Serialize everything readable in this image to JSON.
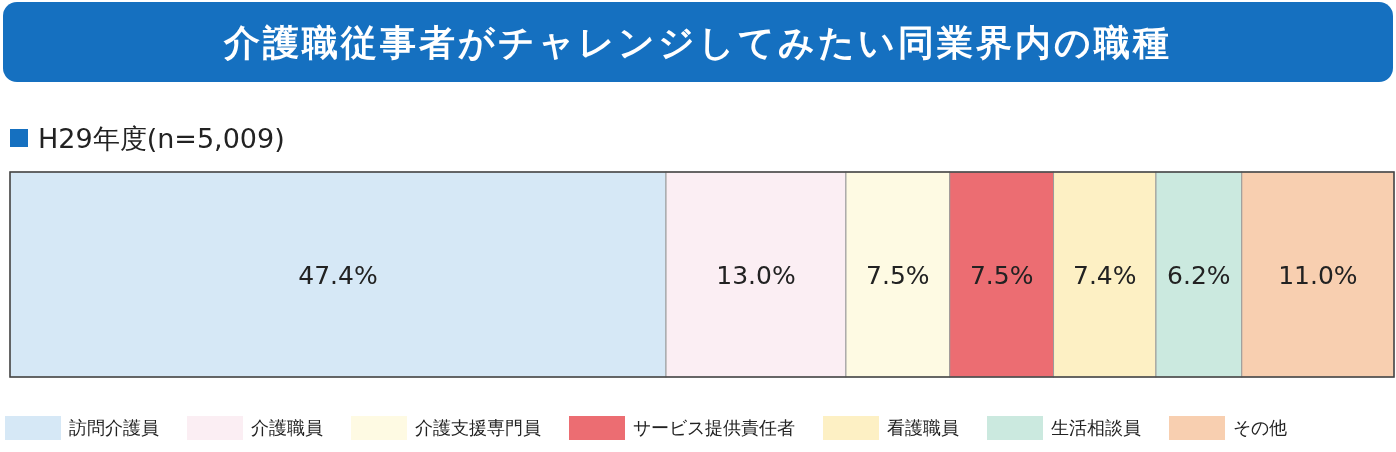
{
  "chart_data": {
    "type": "bar",
    "orientation": "horizontal",
    "stacked": true,
    "title": "介護職従事者がチャレンジしてみたい同業界内の職種",
    "subtitle": "H29年度(n=5,009)",
    "categories": [
      null
    ],
    "xlim": [
      0,
      100
    ],
    "data_labels": true,
    "legend": "bottom",
    "series": [
      {
        "name": "訪問介護員",
        "color": "#d6e8f6",
        "values": [
          47.4
        ],
        "value_labels": [
          "47.4%"
        ]
      },
      {
        "name": "介護職員",
        "color": "#fbeef3",
        "values": [
          13.0
        ],
        "value_labels": [
          "13.0%"
        ]
      },
      {
        "name": "介護支援専門員",
        "color": "#fefae3",
        "values": [
          7.5
        ],
        "value_labels": [
          "7.5%"
        ]
      },
      {
        "name": "サービス提供責任者",
        "color": "#ec6d72",
        "values": [
          7.5
        ],
        "value_labels": [
          "7.5%"
        ]
      },
      {
        "name": "看護職員",
        "color": "#fdf0c4",
        "values": [
          7.4
        ],
        "value_labels": [
          "7.4%"
        ]
      },
      {
        "name": "生活相談員",
        "color": "#cbe9df",
        "values": [
          6.2
        ],
        "value_labels": [
          "6.2%"
        ]
      },
      {
        "name": "その他",
        "color": "#f8cfb0",
        "values": [
          11.0
        ],
        "value_labels": [
          "11.0%"
        ]
      }
    ]
  }
}
